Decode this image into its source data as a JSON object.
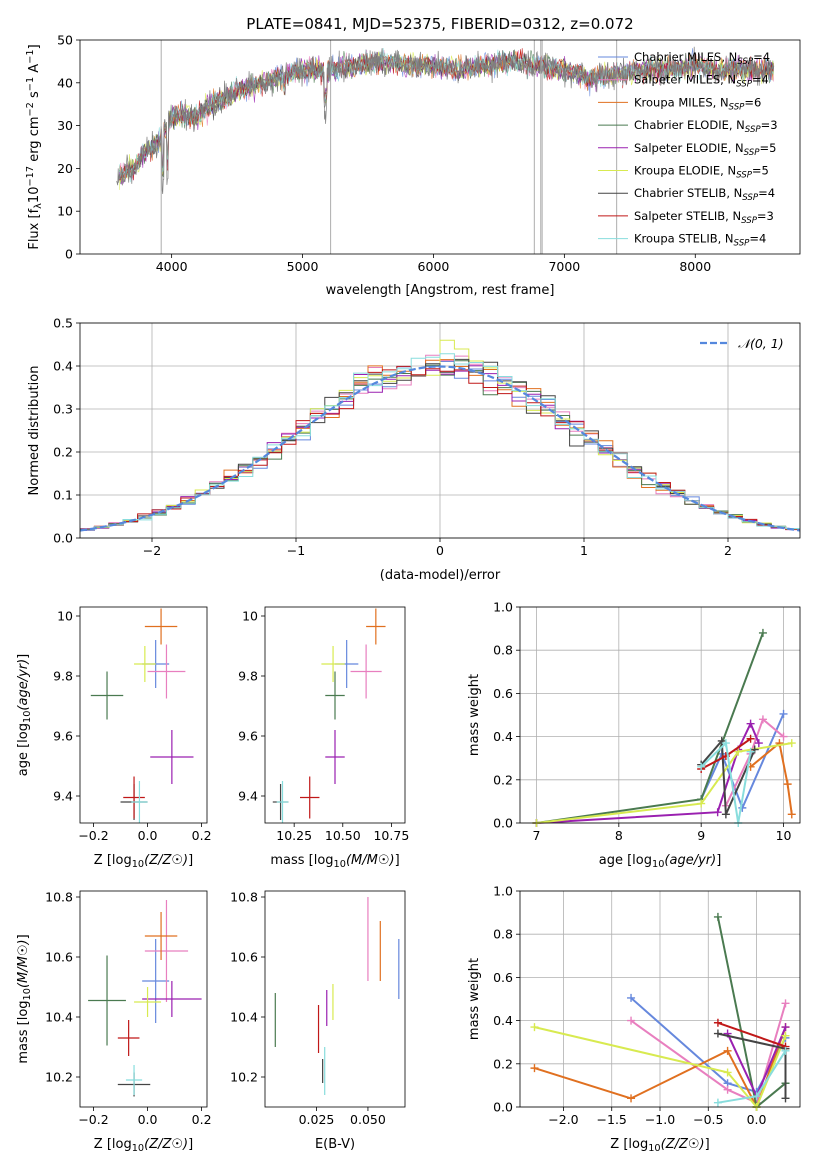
{
  "figure_title": "PLATE=0841, MJD=52375, FIBERID=0312, z=0.072",
  "chart_data": [
    {
      "id": "spectrum",
      "type": "line",
      "title": "PLATE=0841, MJD=52375, FIBERID=0312, z=0.072",
      "xlabel": "wavelength [Angstrom, rest frame]",
      "ylabel": "Flux [fλ10^-17 erg cm^-2 s^-1 A^-1]",
      "xlim": [
        3300,
        8800
      ],
      "ylim": [
        0,
        50
      ],
      "xticks": [
        4000,
        5000,
        6000,
        7000,
        8000
      ],
      "yticks": [
        0,
        10,
        20,
        30,
        40,
        50
      ],
      "legend_position": "top-right",
      "series": [
        {
          "name": "Chabrier MILES, N_SSP=4",
          "color": "#6688dd"
        },
        {
          "name": "Salpeter MILES, N_SSP=4",
          "color": "#e87fbf"
        },
        {
          "name": "Kroupa MILES, N_SSP=6",
          "color": "#e07020"
        },
        {
          "name": "Chabrier ELODIE, N_SSP=3",
          "color": "#4a7a50"
        },
        {
          "name": "Salpeter ELODIE, N_SSP=5",
          "color": "#9a20b0"
        },
        {
          "name": "Kroupa ELODIE, N_SSP=5",
          "color": "#d8ea50"
        },
        {
          "name": "Chabrier STELIB, N_SSP=4",
          "color": "#444444"
        },
        {
          "name": "Salpeter STELIB, N_SSP=3",
          "color": "#c01818"
        },
        {
          "name": "Kroupa STELIB, N_SSP=4",
          "color": "#88dddd"
        }
      ],
      "continuum": {
        "x": [
          3600,
          3700,
          3800,
          3900,
          4000,
          4100,
          4200,
          4300,
          4400,
          4500,
          4600,
          4800,
          5000,
          5200,
          5400,
          5600,
          5800,
          6000,
          6200,
          6400,
          6600,
          6800,
          7000,
          7200,
          7400,
          7600,
          7800,
          8000,
          8200,
          8400,
          8600
        ],
        "y": [
          18,
          20,
          24,
          26,
          32,
          33,
          32,
          35,
          36,
          38,
          39,
          41,
          43,
          43,
          44,
          45,
          44,
          44,
          43,
          44,
          45,
          44,
          43,
          41,
          42,
          43,
          43,
          44,
          43,
          43,
          43
        ]
      }
    },
    {
      "id": "residuals",
      "type": "line",
      "xlabel": "(data-model)/error",
      "ylabel": "Normed distribution",
      "xlim": [
        -2.5,
        2.5
      ],
      "ylim": [
        0,
        0.5
      ],
      "xticks": [
        -2,
        -1,
        0,
        1,
        2
      ],
      "xtick_labels": [
        "−2",
        "−1",
        "0",
        "1",
        "2"
      ],
      "yticks": [
        0.0,
        0.1,
        0.2,
        0.3,
        0.4,
        0.5
      ],
      "grid": true,
      "legend_position": "top-right",
      "reference": {
        "name": "𝒩(0, 1)",
        "color": "#5588dd",
        "mu": 0,
        "sigma": 1
      }
    },
    {
      "id": "age-vs-Z",
      "type": "scatter",
      "xlabel": "Z [log10(Z/Z☉)]",
      "ylabel": "age [log10(age/yr)]",
      "xlim": [
        -0.25,
        0.22
      ],
      "ylim": [
        9.31,
        10.03
      ],
      "xticks": [
        -0.2,
        0.0,
        0.2
      ],
      "xtick_labels": [
        "−0.2",
        "0.0",
        "0.2"
      ],
      "yticks": [
        9.4,
        9.6,
        9.8,
        10.0
      ],
      "series": [
        {
          "name": "Chabrier MILES",
          "color": "#6688dd",
          "x": 0.03,
          "y": 9.84,
          "xerr": 0.05,
          "yerr": 0.08
        },
        {
          "name": "Salpeter MILES",
          "color": "#e87fbf",
          "x": 0.07,
          "y": 9.815,
          "xerr": 0.07,
          "yerr": 0.09
        },
        {
          "name": "Kroupa MILES",
          "color": "#e07020",
          "x": 0.05,
          "y": 9.965,
          "xerr": 0.06,
          "yerr": 0.06
        },
        {
          "name": "Chabrier ELODIE",
          "color": "#4a7a50",
          "x": -0.15,
          "y": 9.735,
          "xerr": 0.06,
          "yerr": 0.08
        },
        {
          "name": "Salpeter ELODIE",
          "color": "#9a20b0",
          "x": 0.09,
          "y": 9.53,
          "xerr": 0.08,
          "yerr": 0.09
        },
        {
          "name": "Kroupa ELODIE",
          "color": "#d8ea50",
          "x": -0.01,
          "y": 9.84,
          "xerr": 0.04,
          "yerr": 0.06
        },
        {
          "name": "Chabrier STELIB",
          "color": "#444444",
          "x": -0.05,
          "y": 9.38,
          "xerr": 0.05,
          "yerr": 0.06
        },
        {
          "name": "Salpeter STELIB",
          "color": "#c01818",
          "x": -0.05,
          "y": 9.395,
          "xerr": 0.04,
          "yerr": 0.07
        },
        {
          "name": "Kroupa STELIB",
          "color": "#88dddd",
          "x": -0.03,
          "y": 9.38,
          "xerr": 0.03,
          "yerr": 0.07
        }
      ]
    },
    {
      "id": "age-vs-mass",
      "type": "scatter",
      "xlabel": "mass [log10(M/M☉)]",
      "ylabel": "",
      "xlim": [
        10.1,
        10.82
      ],
      "ylim": [
        9.31,
        10.03
      ],
      "xticks": [
        10.25,
        10.5,
        10.75
      ],
      "xtick_labels": [
        "10.25",
        "10.50",
        "10.75"
      ],
      "yticks": [
        9.4,
        9.6,
        9.8,
        10.0
      ],
      "series": [
        {
          "name": "Chabrier MILES",
          "color": "#6688dd",
          "x": 10.52,
          "y": 9.84,
          "xerr": 0.06,
          "yerr": 0.08
        },
        {
          "name": "Salpeter MILES",
          "color": "#e87fbf",
          "x": 10.62,
          "y": 9.815,
          "xerr": 0.08,
          "yerr": 0.09
        },
        {
          "name": "Kroupa MILES",
          "color": "#e07020",
          "x": 10.67,
          "y": 9.965,
          "xerr": 0.05,
          "yerr": 0.06
        },
        {
          "name": "Chabrier ELODIE",
          "color": "#4a7a50",
          "x": 10.46,
          "y": 9.735,
          "xerr": 0.05,
          "yerr": 0.08
        },
        {
          "name": "Salpeter ELODIE",
          "color": "#9a20b0",
          "x": 10.46,
          "y": 9.53,
          "xerr": 0.05,
          "yerr": 0.09
        },
        {
          "name": "Kroupa ELODIE",
          "color": "#d8ea50",
          "x": 10.45,
          "y": 9.84,
          "xerr": 0.06,
          "yerr": 0.06
        },
        {
          "name": "Chabrier STELIB",
          "color": "#444444",
          "x": 10.18,
          "y": 9.38,
          "xerr": 0.04,
          "yerr": 0.06
        },
        {
          "name": "Salpeter STELIB",
          "color": "#c01818",
          "x": 10.33,
          "y": 9.395,
          "xerr": 0.05,
          "yerr": 0.07
        },
        {
          "name": "Kroupa STELIB",
          "color": "#88dddd",
          "x": 10.19,
          "y": 9.38,
          "xerr": 0.03,
          "yerr": 0.07
        }
      ]
    },
    {
      "id": "weight-vs-age",
      "type": "line",
      "xlabel": "age [log10(age/yr)]",
      "ylabel": "mass weight",
      "xlim": [
        6.8,
        10.2
      ],
      "ylim": [
        0,
        1
      ],
      "xticks": [
        7,
        8,
        9,
        10
      ],
      "yticks": [
        0.0,
        0.2,
        0.4,
        0.6,
        0.8,
        1.0
      ],
      "grid": true,
      "series": [
        {
          "name": "Chabrier MILES",
          "color": "#6688dd",
          "x": [
            9.0,
            9.25,
            9.5,
            10.0
          ],
          "y": [
            0.11,
            0.32,
            0.07,
            0.505
          ]
        },
        {
          "name": "Salpeter MILES",
          "color": "#e87fbf",
          "x": [
            9.3,
            9.6,
            9.75,
            10.0
          ],
          "y": [
            0.08,
            0.32,
            0.48,
            0.4
          ]
        },
        {
          "name": "Kroupa MILES",
          "color": "#e07020",
          "x": [
            9.6,
            9.95,
            10.05,
            10.1
          ],
          "y": [
            0.26,
            0.37,
            0.18,
            0.04
          ]
        },
        {
          "name": "Chabrier ELODIE",
          "color": "#4a7a50",
          "x": [
            7.0,
            9.0,
            9.75
          ],
          "y": [
            0.0,
            0.11,
            0.88
          ]
        },
        {
          "name": "Salpeter ELODIE",
          "color": "#9a20b0",
          "x": [
            7.0,
            9.2,
            9.45,
            9.6,
            9.7
          ],
          "y": [
            0.0,
            0.05,
            0.34,
            0.46,
            0.37
          ]
        },
        {
          "name": "Kroupa ELODIE",
          "color": "#d8ea50",
          "x": [
            7.0,
            9.0,
            9.45,
            10.1
          ],
          "y": [
            0.0,
            0.09,
            0.33,
            0.37
          ]
        },
        {
          "name": "Chabrier STELIB",
          "color": "#444444",
          "x": [
            9.0,
            9.25,
            9.3,
            9.65
          ],
          "y": [
            0.27,
            0.38,
            0.04,
            0.34
          ]
        },
        {
          "name": "Salpeter STELIB",
          "color": "#c01818",
          "x": [
            9.0,
            9.3,
            9.6
          ],
          "y": [
            0.25,
            0.31,
            0.39
          ]
        },
        {
          "name": "Kroupa STELIB",
          "color": "#88dddd",
          "x": [
            9.0,
            9.3,
            9.45,
            9.6
          ],
          "y": [
            0.26,
            0.37,
            0.0,
            0.33
          ]
        }
      ]
    },
    {
      "id": "mass-vs-Z",
      "type": "scatter",
      "xlabel": "Z [log10(Z/Z☉)]",
      "ylabel": "mass [log10(M/M☉)]",
      "xlim": [
        -0.25,
        0.22
      ],
      "ylim": [
        10.1,
        10.82
      ],
      "xticks": [
        -0.2,
        0.0,
        0.2
      ],
      "xtick_labels": [
        "−0.2",
        "0.0",
        "0.2"
      ],
      "yticks": [
        10.2,
        10.4,
        10.6,
        10.8
      ],
      "series": [
        {
          "name": "Chabrier MILES",
          "color": "#6688dd",
          "x": 0.03,
          "y": 10.52,
          "xerr": 0.05,
          "yerr": 0.14
        },
        {
          "name": "Salpeter MILES",
          "color": "#e87fbf",
          "x": 0.07,
          "y": 10.62,
          "xerr": 0.08,
          "yerr": 0.17
        },
        {
          "name": "Kroupa MILES",
          "color": "#e07020",
          "x": 0.05,
          "y": 10.67,
          "xerr": 0.06,
          "yerr": 0.08
        },
        {
          "name": "Chabrier ELODIE",
          "color": "#4a7a50",
          "x": -0.15,
          "y": 10.455,
          "xerr": 0.07,
          "yerr": 0.15
        },
        {
          "name": "Salpeter ELODIE",
          "color": "#9a20b0",
          "x": 0.09,
          "y": 10.46,
          "xerr": 0.11,
          "yerr": 0.06
        },
        {
          "name": "Kroupa ELODIE",
          "color": "#d8ea50",
          "x": 0.0,
          "y": 10.45,
          "xerr": 0.05,
          "yerr": 0.05
        },
        {
          "name": "Chabrier STELIB",
          "color": "#444444",
          "x": -0.05,
          "y": 10.175,
          "xerr": 0.06,
          "yerr": 0.04
        },
        {
          "name": "Salpeter STELIB",
          "color": "#c01818",
          "x": -0.07,
          "y": 10.33,
          "xerr": 0.04,
          "yerr": 0.06
        },
        {
          "name": "Kroupa STELIB",
          "color": "#88dddd",
          "x": -0.05,
          "y": 10.19,
          "xerr": 0.03,
          "yerr": 0.05
        }
      ]
    },
    {
      "id": "mass-vs-EBV",
      "type": "scatter",
      "xlabel": "E(B-V)",
      "ylabel": "",
      "xlim": [
        0.0,
        0.068
      ],
      "ylim": [
        10.1,
        10.82
      ],
      "xticks": [
        0.025,
        0.05
      ],
      "xtick_labels": [
        "0.025",
        "0.050"
      ],
      "yticks": [
        10.2,
        10.4,
        10.6,
        10.8
      ],
      "series": [
        {
          "name": "Chabrier MILES",
          "color": "#6688dd",
          "x": 0.065,
          "y": 10.56,
          "yerr": 0.1
        },
        {
          "name": "Salpeter MILES",
          "color": "#e87fbf",
          "x": 0.05,
          "y": 10.66,
          "yerr": 0.14
        },
        {
          "name": "Kroupa MILES",
          "color": "#e07020",
          "x": 0.056,
          "y": 10.62,
          "yerr": 0.1
        },
        {
          "name": "Chabrier ELODIE",
          "color": "#4a7a50",
          "x": 0.005,
          "y": 10.39,
          "yerr": 0.09
        },
        {
          "name": "Salpeter ELODIE",
          "color": "#9a20b0",
          "x": 0.03,
          "y": 10.43,
          "yerr": 0.06
        },
        {
          "name": "Kroupa ELODIE",
          "color": "#d8ea50",
          "x": 0.033,
          "y": 10.45,
          "yerr": 0.06
        },
        {
          "name": "Chabrier STELIB",
          "color": "#444444",
          "x": 0.028,
          "y": 10.22,
          "yerr": 0.04
        },
        {
          "name": "Salpeter STELIB",
          "color": "#c01818",
          "x": 0.026,
          "y": 10.36,
          "yerr": 0.08
        },
        {
          "name": "Kroupa STELIB",
          "color": "#88dddd",
          "x": 0.029,
          "y": 10.22,
          "yerr": 0.08
        }
      ]
    },
    {
      "id": "weight-vs-Z",
      "type": "line",
      "xlabel": "Z [log10(Z/Z☉)]",
      "ylabel": "mass weight",
      "xlim": [
        -2.45,
        0.45
      ],
      "ylim": [
        0,
        1
      ],
      "xticks": [
        -2.0,
        -1.5,
        -1.0,
        -0.5,
        0.0
      ],
      "xtick_labels": [
        "−2.0",
        "−1.5",
        "−1.0",
        "−0.5",
        "0.0"
      ],
      "yticks": [
        0.0,
        0.2,
        0.4,
        0.6,
        0.8,
        1.0
      ],
      "grid": true,
      "series": [
        {
          "name": "Chabrier MILES",
          "color": "#6688dd",
          "x": [
            -1.3,
            -0.3,
            0.0,
            0.3
          ],
          "y": [
            0.505,
            0.11,
            0.07,
            0.32
          ]
        },
        {
          "name": "Salpeter MILES",
          "color": "#e87fbf",
          "x": [
            -1.3,
            -0.3,
            0.0,
            0.3
          ],
          "y": [
            0.4,
            0.08,
            0.02,
            0.48
          ]
        },
        {
          "name": "Kroupa MILES",
          "color": "#e07020",
          "x": [
            -2.3,
            -1.3,
            -0.3,
            0.0,
            0.3
          ],
          "y": [
            0.18,
            0.04,
            0.26,
            0.0,
            0.37
          ]
        },
        {
          "name": "Chabrier ELODIE",
          "color": "#4a7a50",
          "x": [
            -0.4,
            0.0,
            0.3
          ],
          "y": [
            0.88,
            0.0,
            0.11
          ]
        },
        {
          "name": "Salpeter ELODIE",
          "color": "#9a20b0",
          "x": [
            -0.3,
            0.0,
            0.3
          ],
          "y": [
            0.34,
            0.05,
            0.37
          ]
        },
        {
          "name": "Kroupa ELODIE",
          "color": "#d8ea50",
          "x": [
            -2.3,
            -0.3,
            0.0,
            0.3
          ],
          "y": [
            0.37,
            0.16,
            0.0,
            0.33
          ]
        },
        {
          "name": "Chabrier STELIB",
          "color": "#444444",
          "x": [
            -0.4,
            0.3,
            0.3
          ],
          "y": [
            0.34,
            0.27,
            0.04
          ]
        },
        {
          "name": "Salpeter STELIB",
          "color": "#c01818",
          "x": [
            -0.4,
            0.3
          ],
          "y": [
            0.39,
            0.28
          ]
        },
        {
          "name": "Kroupa STELIB",
          "color": "#88dddd",
          "x": [
            -0.4,
            0.0,
            0.3
          ],
          "y": [
            0.02,
            0.05,
            0.26
          ]
        }
      ]
    }
  ]
}
